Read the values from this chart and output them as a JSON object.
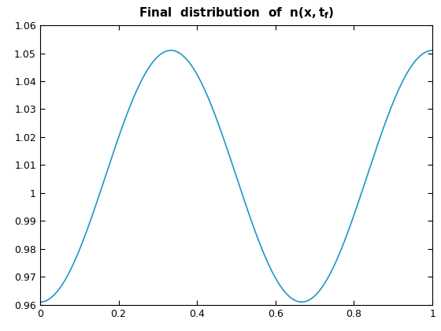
{
  "title": "Final  distribution  of  n(x,t_f)",
  "xlim": [
    0,
    1
  ],
  "ylim": [
    0.96,
    1.06
  ],
  "yticks": [
    0.96,
    0.97,
    0.98,
    0.99,
    1.0,
    1.01,
    1.02,
    1.03,
    1.04,
    1.05,
    1.06
  ],
  "xticks": [
    0,
    0.2,
    0.4,
    0.6,
    0.8,
    1.0
  ],
  "line_color": "#2196c8",
  "line_width": 1.2,
  "n_points": 1000,
  "amplitude": 0.045,
  "mean_val": 1.006,
  "figure_width": 5.6,
  "figure_height": 4.2,
  "dpi": 100
}
